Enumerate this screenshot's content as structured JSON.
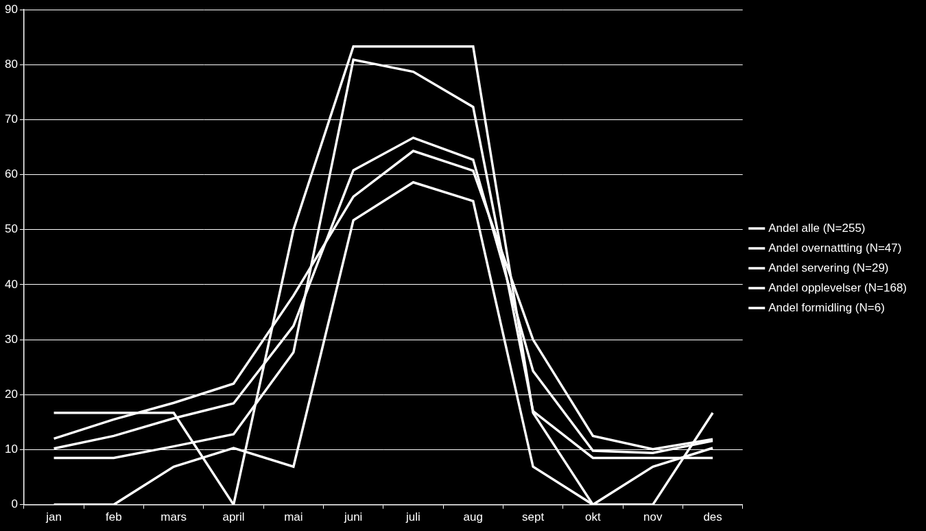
{
  "chart_data": {
    "type": "line",
    "categories": [
      "jan",
      "feb",
      "mars",
      "april",
      "mai",
      "juni",
      "juli",
      "aug",
      "sept",
      "okt",
      "nov",
      "des"
    ],
    "series": [
      {
        "name": "Andel alle (N=255)",
        "color": "#ffffff",
        "values": [
          10.2,
          12.5,
          15.7,
          18.4,
          32.5,
          60.8,
          66.7,
          62.7,
          24.3,
          9.8,
          9.4,
          11.6
        ]
      },
      {
        "name": "Andel overnattting (N=47)",
        "color": "#ffffff",
        "values": [
          8.5,
          8.5,
          10.6,
          12.8,
          27.7,
          80.9,
          78.7,
          72.3,
          17.0,
          8.5,
          8.5,
          8.5
        ]
      },
      {
        "name": "Andel servering (N=29)",
        "color": "#ffffff",
        "values": [
          0,
          0,
          6.9,
          10.3,
          6.9,
          51.7,
          58.6,
          55.2,
          6.9,
          0,
          6.9,
          10.3
        ]
      },
      {
        "name": "Andel opplevelser (N=168)",
        "color": "#ffffff",
        "values": [
          12.0,
          15.5,
          18.5,
          22.0,
          38.0,
          56.0,
          64.3,
          60.7,
          30.0,
          12.5,
          10.1,
          11.9
        ]
      },
      {
        "name": "Andel formidling (N=6)",
        "color": "#ffffff",
        "values": [
          16.7,
          16.7,
          16.7,
          0,
          50.0,
          83.3,
          83.3,
          83.3,
          16.7,
          0,
          0,
          16.7
        ]
      }
    ],
    "ylim": [
      0,
      90
    ],
    "yticks": [
      0,
      10,
      20,
      30,
      40,
      50,
      60,
      70,
      80,
      90
    ],
    "grid": true,
    "legend": "right"
  }
}
